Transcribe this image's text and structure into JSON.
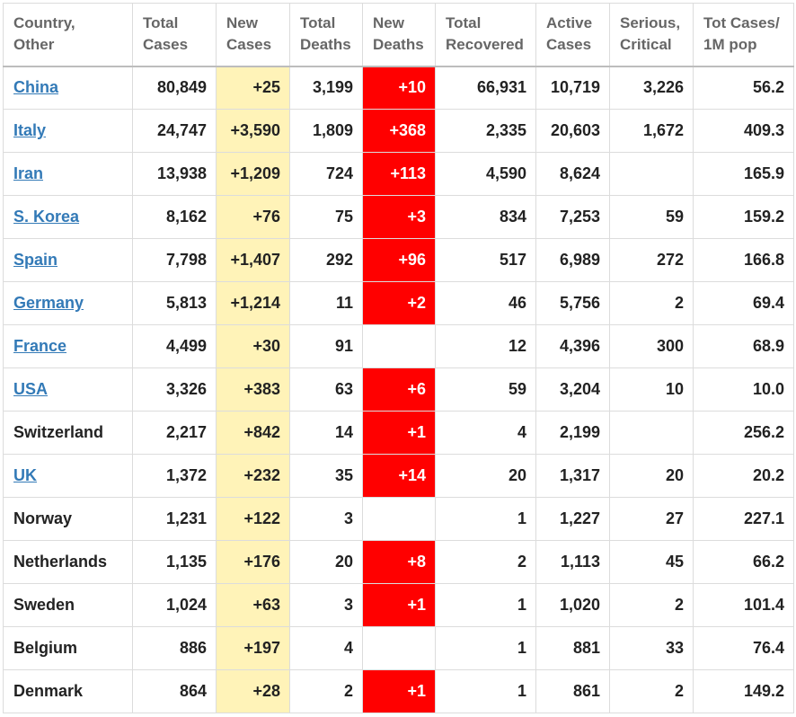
{
  "table": {
    "headers": [
      [
        "Country,",
        "Other"
      ],
      [
        "Total",
        "Cases"
      ],
      [
        "New",
        "Cases"
      ],
      [
        "Total",
        "Deaths"
      ],
      [
        "New",
        "Deaths"
      ],
      [
        "Total",
        "Recovered"
      ],
      [
        "Active",
        "Cases"
      ],
      [
        "Serious,",
        "Critical"
      ],
      [
        "Tot Cases/",
        "1M pop"
      ]
    ],
    "rows": [
      {
        "country": "China",
        "link": true,
        "total_cases": "80,849",
        "new_cases": "+25",
        "total_deaths": "3,199",
        "new_deaths": "+10",
        "total_recovered": "66,931",
        "active_cases": "10,719",
        "serious_critical": "3,226",
        "per_million": "56.2"
      },
      {
        "country": "Italy",
        "link": true,
        "total_cases": "24,747",
        "new_cases": "+3,590",
        "total_deaths": "1,809",
        "new_deaths": "+368",
        "total_recovered": "2,335",
        "active_cases": "20,603",
        "serious_critical": "1,672",
        "per_million": "409.3"
      },
      {
        "country": "Iran",
        "link": true,
        "total_cases": "13,938",
        "new_cases": "+1,209",
        "total_deaths": "724",
        "new_deaths": "+113",
        "total_recovered": "4,590",
        "active_cases": "8,624",
        "serious_critical": "",
        "per_million": "165.9"
      },
      {
        "country": "S. Korea",
        "link": true,
        "total_cases": "8,162",
        "new_cases": "+76",
        "total_deaths": "75",
        "new_deaths": "+3",
        "total_recovered": "834",
        "active_cases": "7,253",
        "serious_critical": "59",
        "per_million": "159.2"
      },
      {
        "country": "Spain",
        "link": true,
        "total_cases": "7,798",
        "new_cases": "+1,407",
        "total_deaths": "292",
        "new_deaths": "+96",
        "total_recovered": "517",
        "active_cases": "6,989",
        "serious_critical": "272",
        "per_million": "166.8"
      },
      {
        "country": "Germany",
        "link": true,
        "total_cases": "5,813",
        "new_cases": "+1,214",
        "total_deaths": "11",
        "new_deaths": "+2",
        "total_recovered": "46",
        "active_cases": "5,756",
        "serious_critical": "2",
        "per_million": "69.4"
      },
      {
        "country": "France",
        "link": true,
        "total_cases": "4,499",
        "new_cases": "+30",
        "total_deaths": "91",
        "new_deaths": "",
        "total_recovered": "12",
        "active_cases": "4,396",
        "serious_critical": "300",
        "per_million": "68.9"
      },
      {
        "country": "USA",
        "link": true,
        "total_cases": "3,326",
        "new_cases": "+383",
        "total_deaths": "63",
        "new_deaths": "+6",
        "total_recovered": "59",
        "active_cases": "3,204",
        "serious_critical": "10",
        "per_million": "10.0"
      },
      {
        "country": "Switzerland",
        "link": false,
        "total_cases": "2,217",
        "new_cases": "+842",
        "total_deaths": "14",
        "new_deaths": "+1",
        "total_recovered": "4",
        "active_cases": "2,199",
        "serious_critical": "",
        "per_million": "256.2"
      },
      {
        "country": "UK",
        "link": true,
        "total_cases": "1,372",
        "new_cases": "+232",
        "total_deaths": "35",
        "new_deaths": "+14",
        "total_recovered": "20",
        "active_cases": "1,317",
        "serious_critical": "20",
        "per_million": "20.2"
      },
      {
        "country": "Norway",
        "link": false,
        "total_cases": "1,231",
        "new_cases": "+122",
        "total_deaths": "3",
        "new_deaths": "",
        "total_recovered": "1",
        "active_cases": "1,227",
        "serious_critical": "27",
        "per_million": "227.1"
      },
      {
        "country": "Netherlands",
        "link": false,
        "total_cases": "1,135",
        "new_cases": "+176",
        "total_deaths": "20",
        "new_deaths": "+8",
        "total_recovered": "2",
        "active_cases": "1,113",
        "serious_critical": "45",
        "per_million": "66.2"
      },
      {
        "country": "Sweden",
        "link": false,
        "total_cases": "1,024",
        "new_cases": "+63",
        "total_deaths": "3",
        "new_deaths": "+1",
        "total_recovered": "1",
        "active_cases": "1,020",
        "serious_critical": "2",
        "per_million": "101.4"
      },
      {
        "country": "Belgium",
        "link": false,
        "total_cases": "886",
        "new_cases": "+197",
        "total_deaths": "4",
        "new_deaths": "",
        "total_recovered": "1",
        "active_cases": "881",
        "serious_critical": "33",
        "per_million": "76.4"
      },
      {
        "country": "Denmark",
        "link": false,
        "total_cases": "864",
        "new_cases": "+28",
        "total_deaths": "2",
        "new_deaths": "+1",
        "total_recovered": "1",
        "active_cases": "861",
        "serious_critical": "2",
        "per_million": "149.2"
      }
    ]
  },
  "colors": {
    "new_cases_highlight": "#fff3b8",
    "new_deaths_highlight": "#ff0000",
    "link": "#337ab7",
    "header_text": "#666666"
  }
}
